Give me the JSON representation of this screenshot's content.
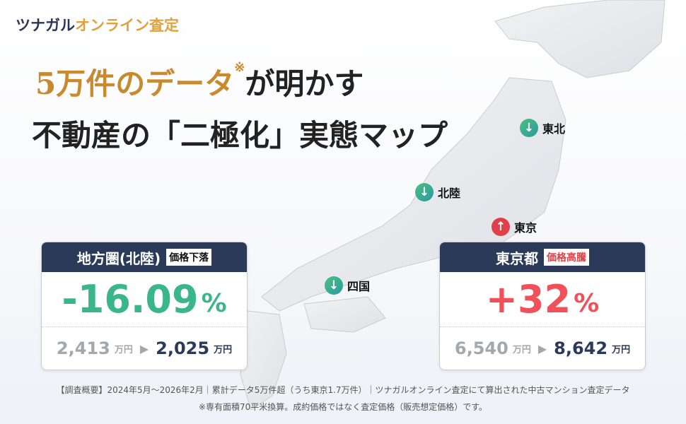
{
  "logo": {
    "part1": "ツナガル",
    "part2": "オンライン査定"
  },
  "headline": {
    "highlight": "5万件のデータ",
    "mark": "※",
    "rest": "が明かす",
    "line2": "不動産の「二極化」実態マップ"
  },
  "pins": [
    {
      "label": "東北",
      "direction": "down",
      "icon": "arrow-down-icon"
    },
    {
      "label": "北陸",
      "direction": "down",
      "icon": "arrow-down-icon"
    },
    {
      "label": "東京",
      "direction": "up",
      "icon": "arrow-up-icon"
    },
    {
      "label": "四国",
      "direction": "down",
      "icon": "arrow-down-icon"
    }
  ],
  "cards": {
    "regional": {
      "title": "地方圏(北陸)",
      "tag": "価格下落",
      "change": "-16.09",
      "pct": "%",
      "from": "2,413",
      "from_unit": "万円",
      "to": "2,025",
      "to_unit": "万円",
      "color": "#3bb58a"
    },
    "tokyo": {
      "title": "東京都",
      "tag": "価格高騰",
      "change": "+32",
      "pct": "%",
      "from": "6,540",
      "from_unit": "万円",
      "to": "8,642",
      "to_unit": "万円",
      "color": "#f0505a"
    }
  },
  "footer": {
    "line1": "【調査概要】2024年5月～2026年2月｜累計データ5万件超（うち東京1.7万件）｜ツナガルオンライン査定にて算出された中古マンション査定データ",
    "line2": "※専有面積70平米換算。成約価格ではなく査定価格（販売想定価格）です。"
  },
  "colors": {
    "navy": "#2c3a5a",
    "gold": "#c8892f",
    "down": "#3bb58a",
    "up": "#e0404a"
  }
}
